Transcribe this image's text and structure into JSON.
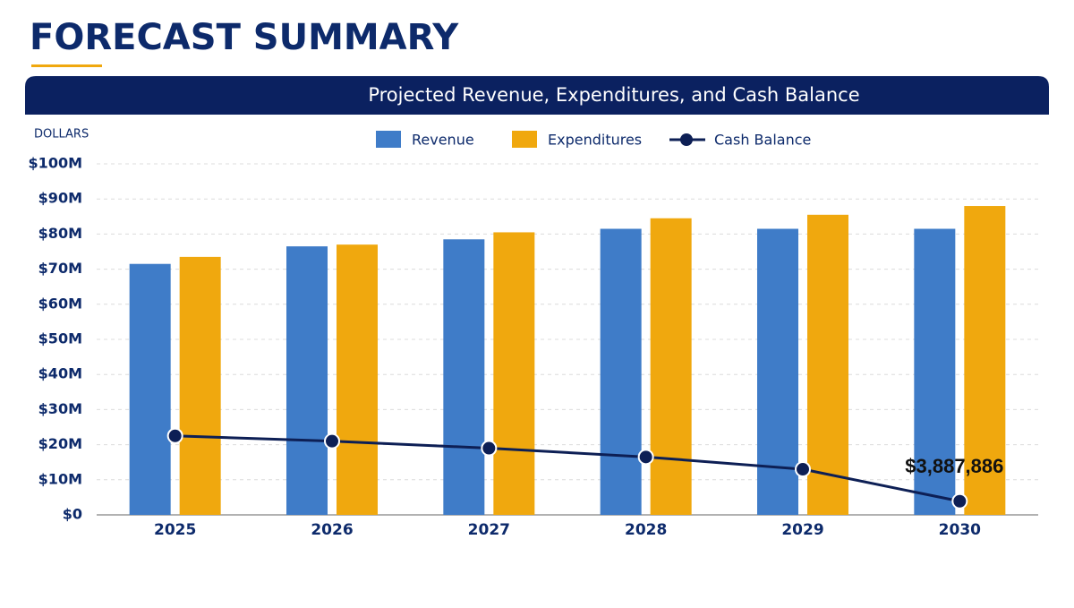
{
  "header": {
    "title": "FORECAST SUMMARY"
  },
  "chart_data": {
    "type": "bar-line",
    "title": "Projected Revenue, Expenditures, and Cash Balance",
    "y_label": "DOLLARS",
    "categories": [
      "2025",
      "2026",
      "2027",
      "2028",
      "2029",
      "2030"
    ],
    "series": [
      {
        "name": "Revenue",
        "type": "bar",
        "color": "#3f7cc8",
        "values": [
          71500000,
          76500000,
          78500000,
          81500000,
          81500000,
          81500000
        ]
      },
      {
        "name": "Expenditures",
        "type": "bar",
        "color": "#f0a80e",
        "values": [
          73500000,
          77000000,
          80500000,
          84500000,
          85500000,
          88000000
        ]
      },
      {
        "name": "Cash Balance",
        "type": "line",
        "color": "#0d1f55",
        "values": [
          22500000,
          21000000,
          19000000,
          16500000,
          13000000,
          3887886
        ],
        "value_labels": [
          null,
          null,
          null,
          null,
          null,
          "$3,887,886"
        ]
      }
    ],
    "ylim": [
      0,
      100000000
    ],
    "yticks": [
      {
        "value": 0,
        "label": "$0"
      },
      {
        "value": 10000000,
        "label": "$10M"
      },
      {
        "value": 20000000,
        "label": "$20M"
      },
      {
        "value": 30000000,
        "label": "$30M"
      },
      {
        "value": 40000000,
        "label": "$40M"
      },
      {
        "value": 50000000,
        "label": "$50M"
      },
      {
        "value": 60000000,
        "label": "$60M"
      },
      {
        "value": 70000000,
        "label": "$70M"
      },
      {
        "value": 80000000,
        "label": "$80M"
      },
      {
        "value": 90000000,
        "label": "$90M"
      },
      {
        "value": 100000000,
        "label": "$100M"
      }
    ],
    "grid": true,
    "legend": "top"
  }
}
